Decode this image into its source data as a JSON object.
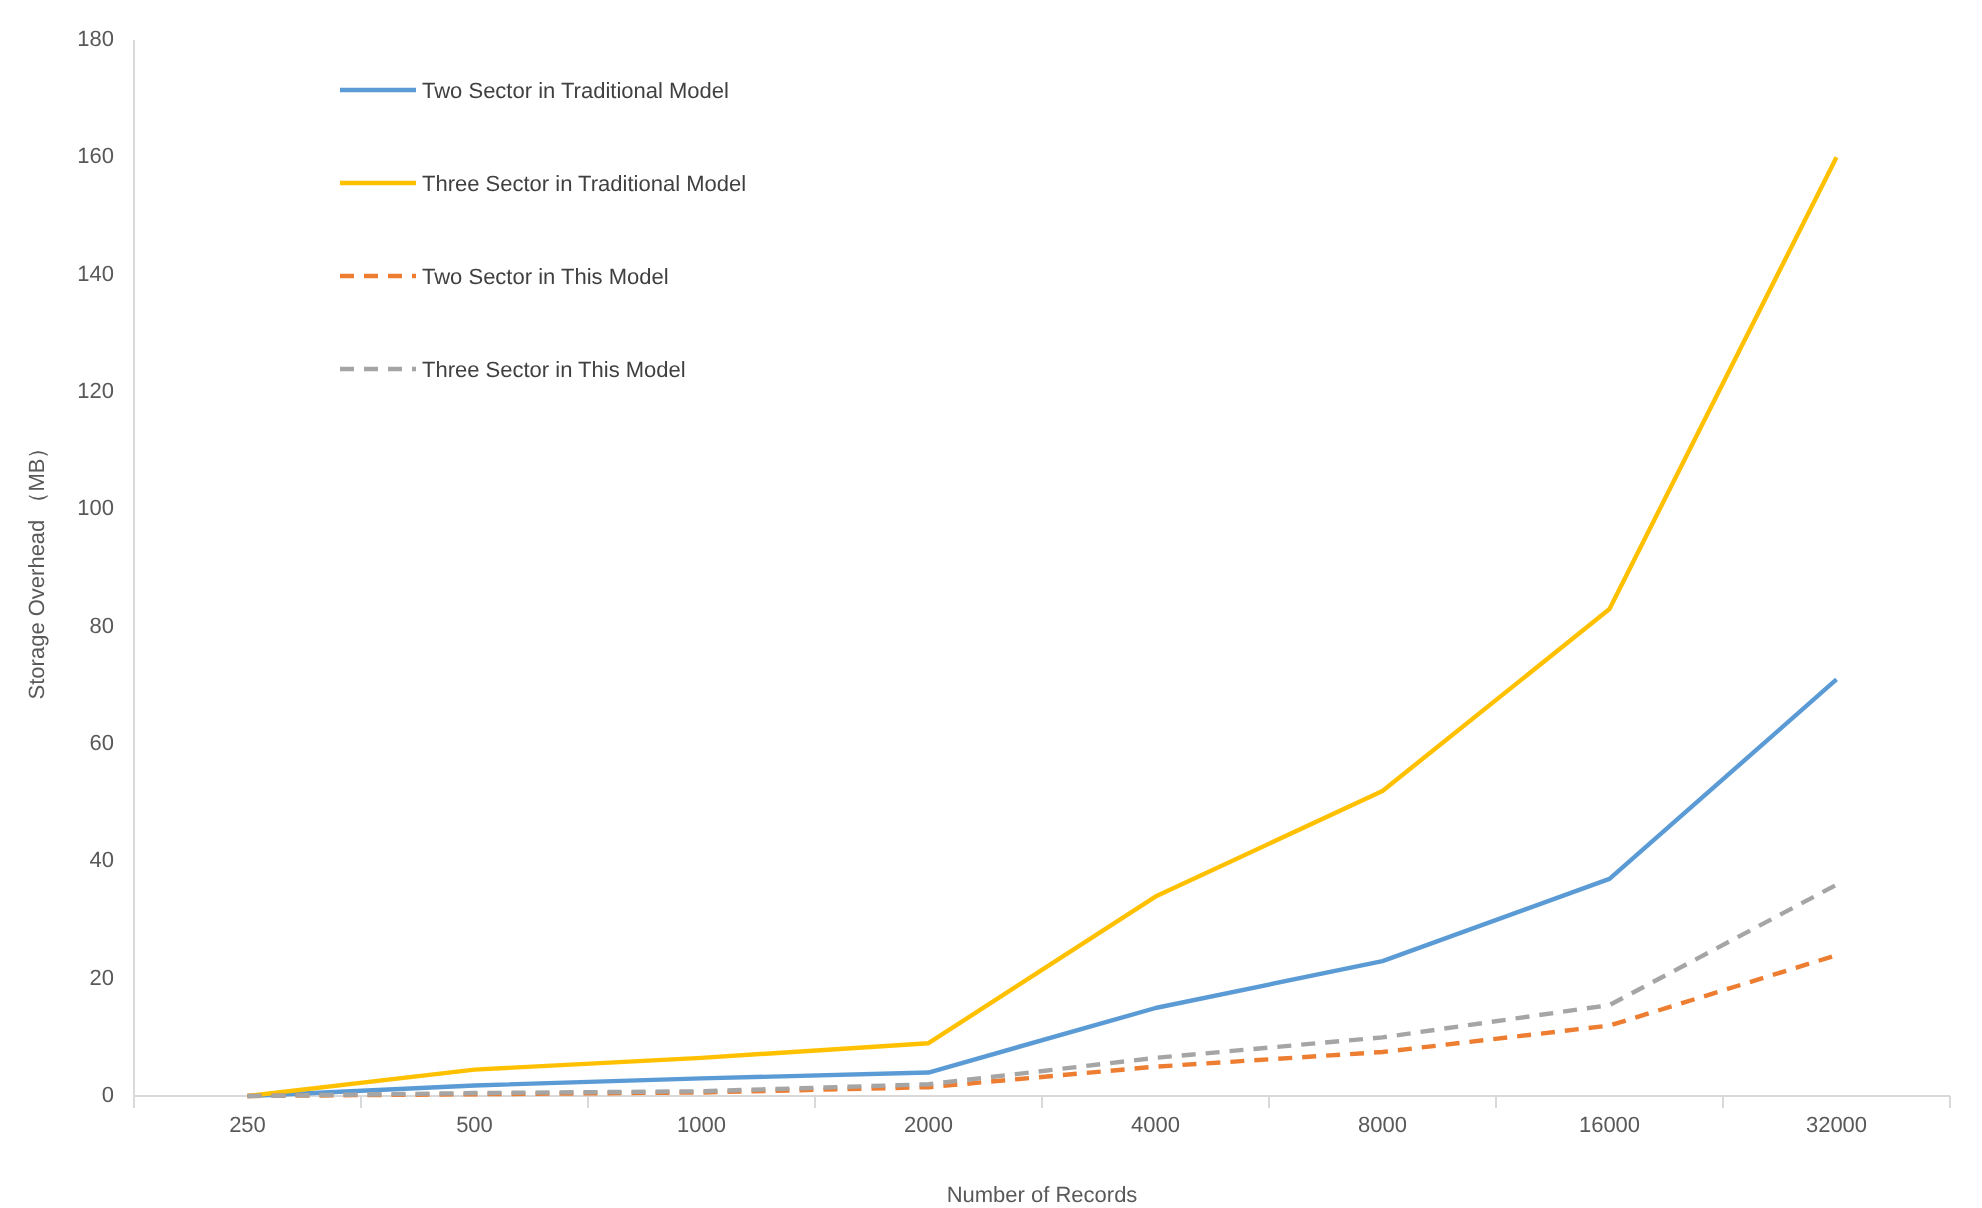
{
  "chart_data": {
    "type": "line",
    "xlabel": "Number of Records",
    "ylabel": "Storage Overhead （MB）",
    "categories": [
      "250",
      "500",
      "1000",
      "2000",
      "4000",
      "8000",
      "16000",
      "32000"
    ],
    "series": [
      {
        "name": "Two Sector in Traditional Model",
        "color": "#5b9bd5",
        "line_style": "solid",
        "values": [
          0,
          1.8,
          3,
          4,
          15,
          23,
          37,
          71
        ]
      },
      {
        "name": "Three Sector in Traditional Model",
        "color": "#ffc000",
        "line_style": "solid",
        "values": [
          0,
          4.5,
          6.5,
          9,
          34,
          52,
          83,
          160
        ]
      },
      {
        "name": "Two Sector in This Model",
        "color": "#ed7d31",
        "line_style": "dashed",
        "values": [
          0,
          0.3,
          0.6,
          1.5,
          5,
          7.5,
          12,
          24
        ]
      },
      {
        "name": "Three Sector in This Model",
        "color": "#a5a5a5",
        "line_style": "dashed",
        "values": [
          0,
          0.5,
          0.8,
          2,
          6.5,
          10,
          15.5,
          36
        ]
      }
    ],
    "ylim": [
      0,
      180
    ],
    "yticks": [
      0,
      20,
      40,
      60,
      80,
      100,
      120,
      140,
      160,
      180
    ],
    "grid": false,
    "legend": "top left",
    "marker": "none"
  }
}
